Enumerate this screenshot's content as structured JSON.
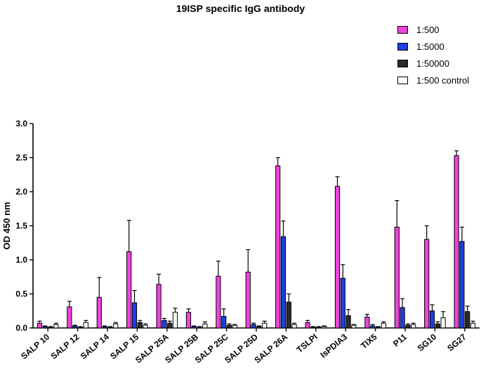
{
  "chart_data": {
    "type": "bar",
    "title": "19ISP specific IgG antibody",
    "xlabel": "",
    "ylabel": "OD 450 nm",
    "ylim": [
      0,
      3.0
    ],
    "yticks": [
      "0.0",
      "0.5",
      "1.0",
      "1.5",
      "2.0",
      "2.5",
      "3.0"
    ],
    "categories": [
      "SALP 10",
      "SALP 12",
      "SALP 14",
      "SALP 15",
      "SALP 25A",
      "SALP 25B",
      "SALP 25C",
      "SALP 25D",
      "SALP 26A",
      "TSLPI",
      "IsPDIA3",
      "TIX5",
      "P11",
      "SG10",
      "SG27"
    ],
    "series": [
      {
        "name": "1:500",
        "color": "#ee44dd",
        "values": [
          0.07,
          0.31,
          0.45,
          1.12,
          0.64,
          0.23,
          0.76,
          0.82,
          2.38,
          0.08,
          2.08,
          0.16,
          1.48,
          1.3,
          2.53
        ],
        "errors": [
          0.03,
          0.08,
          0.29,
          0.46,
          0.15,
          0.05,
          0.22,
          0.33,
          0.12,
          0.03,
          0.14,
          0.04,
          0.39,
          0.2,
          0.07
        ]
      },
      {
        "name": "1:5000",
        "color": "#1f3fe0",
        "values": [
          0.02,
          0.03,
          0.02,
          0.37,
          0.11,
          0.02,
          0.17,
          0.05,
          1.34,
          0.01,
          0.73,
          0.03,
          0.3,
          0.25,
          1.27
        ],
        "errors": [
          0.01,
          0.01,
          0.01,
          0.18,
          0.03,
          0.01,
          0.11,
          0.02,
          0.23,
          0.01,
          0.2,
          0.02,
          0.13,
          0.09,
          0.21
        ]
      },
      {
        "name": "1:50000",
        "color": "#2b2b2b",
        "values": [
          0.01,
          0.01,
          0.01,
          0.08,
          0.07,
          0.01,
          0.04,
          0.02,
          0.38,
          0.01,
          0.18,
          0.01,
          0.04,
          0.06,
          0.24
        ],
        "errors": [
          0.01,
          0.01,
          0.01,
          0.03,
          0.03,
          0.01,
          0.02,
          0.01,
          0.12,
          0.01,
          0.09,
          0.01,
          0.02,
          0.03,
          0.08
        ]
      },
      {
        "name": "1:500 control",
        "color": "#ffffff",
        "values": [
          0.05,
          0.08,
          0.06,
          0.04,
          0.23,
          0.06,
          0.04,
          0.07,
          0.05,
          0.02,
          0.04,
          0.07,
          0.05,
          0.15,
          0.07
        ],
        "errors": [
          0.02,
          0.03,
          0.02,
          0.02,
          0.06,
          0.03,
          0.01,
          0.03,
          0.02,
          0.01,
          0.01,
          0.02,
          0.02,
          0.09,
          0.03
        ]
      }
    ],
    "legend_position": "top-right"
  }
}
